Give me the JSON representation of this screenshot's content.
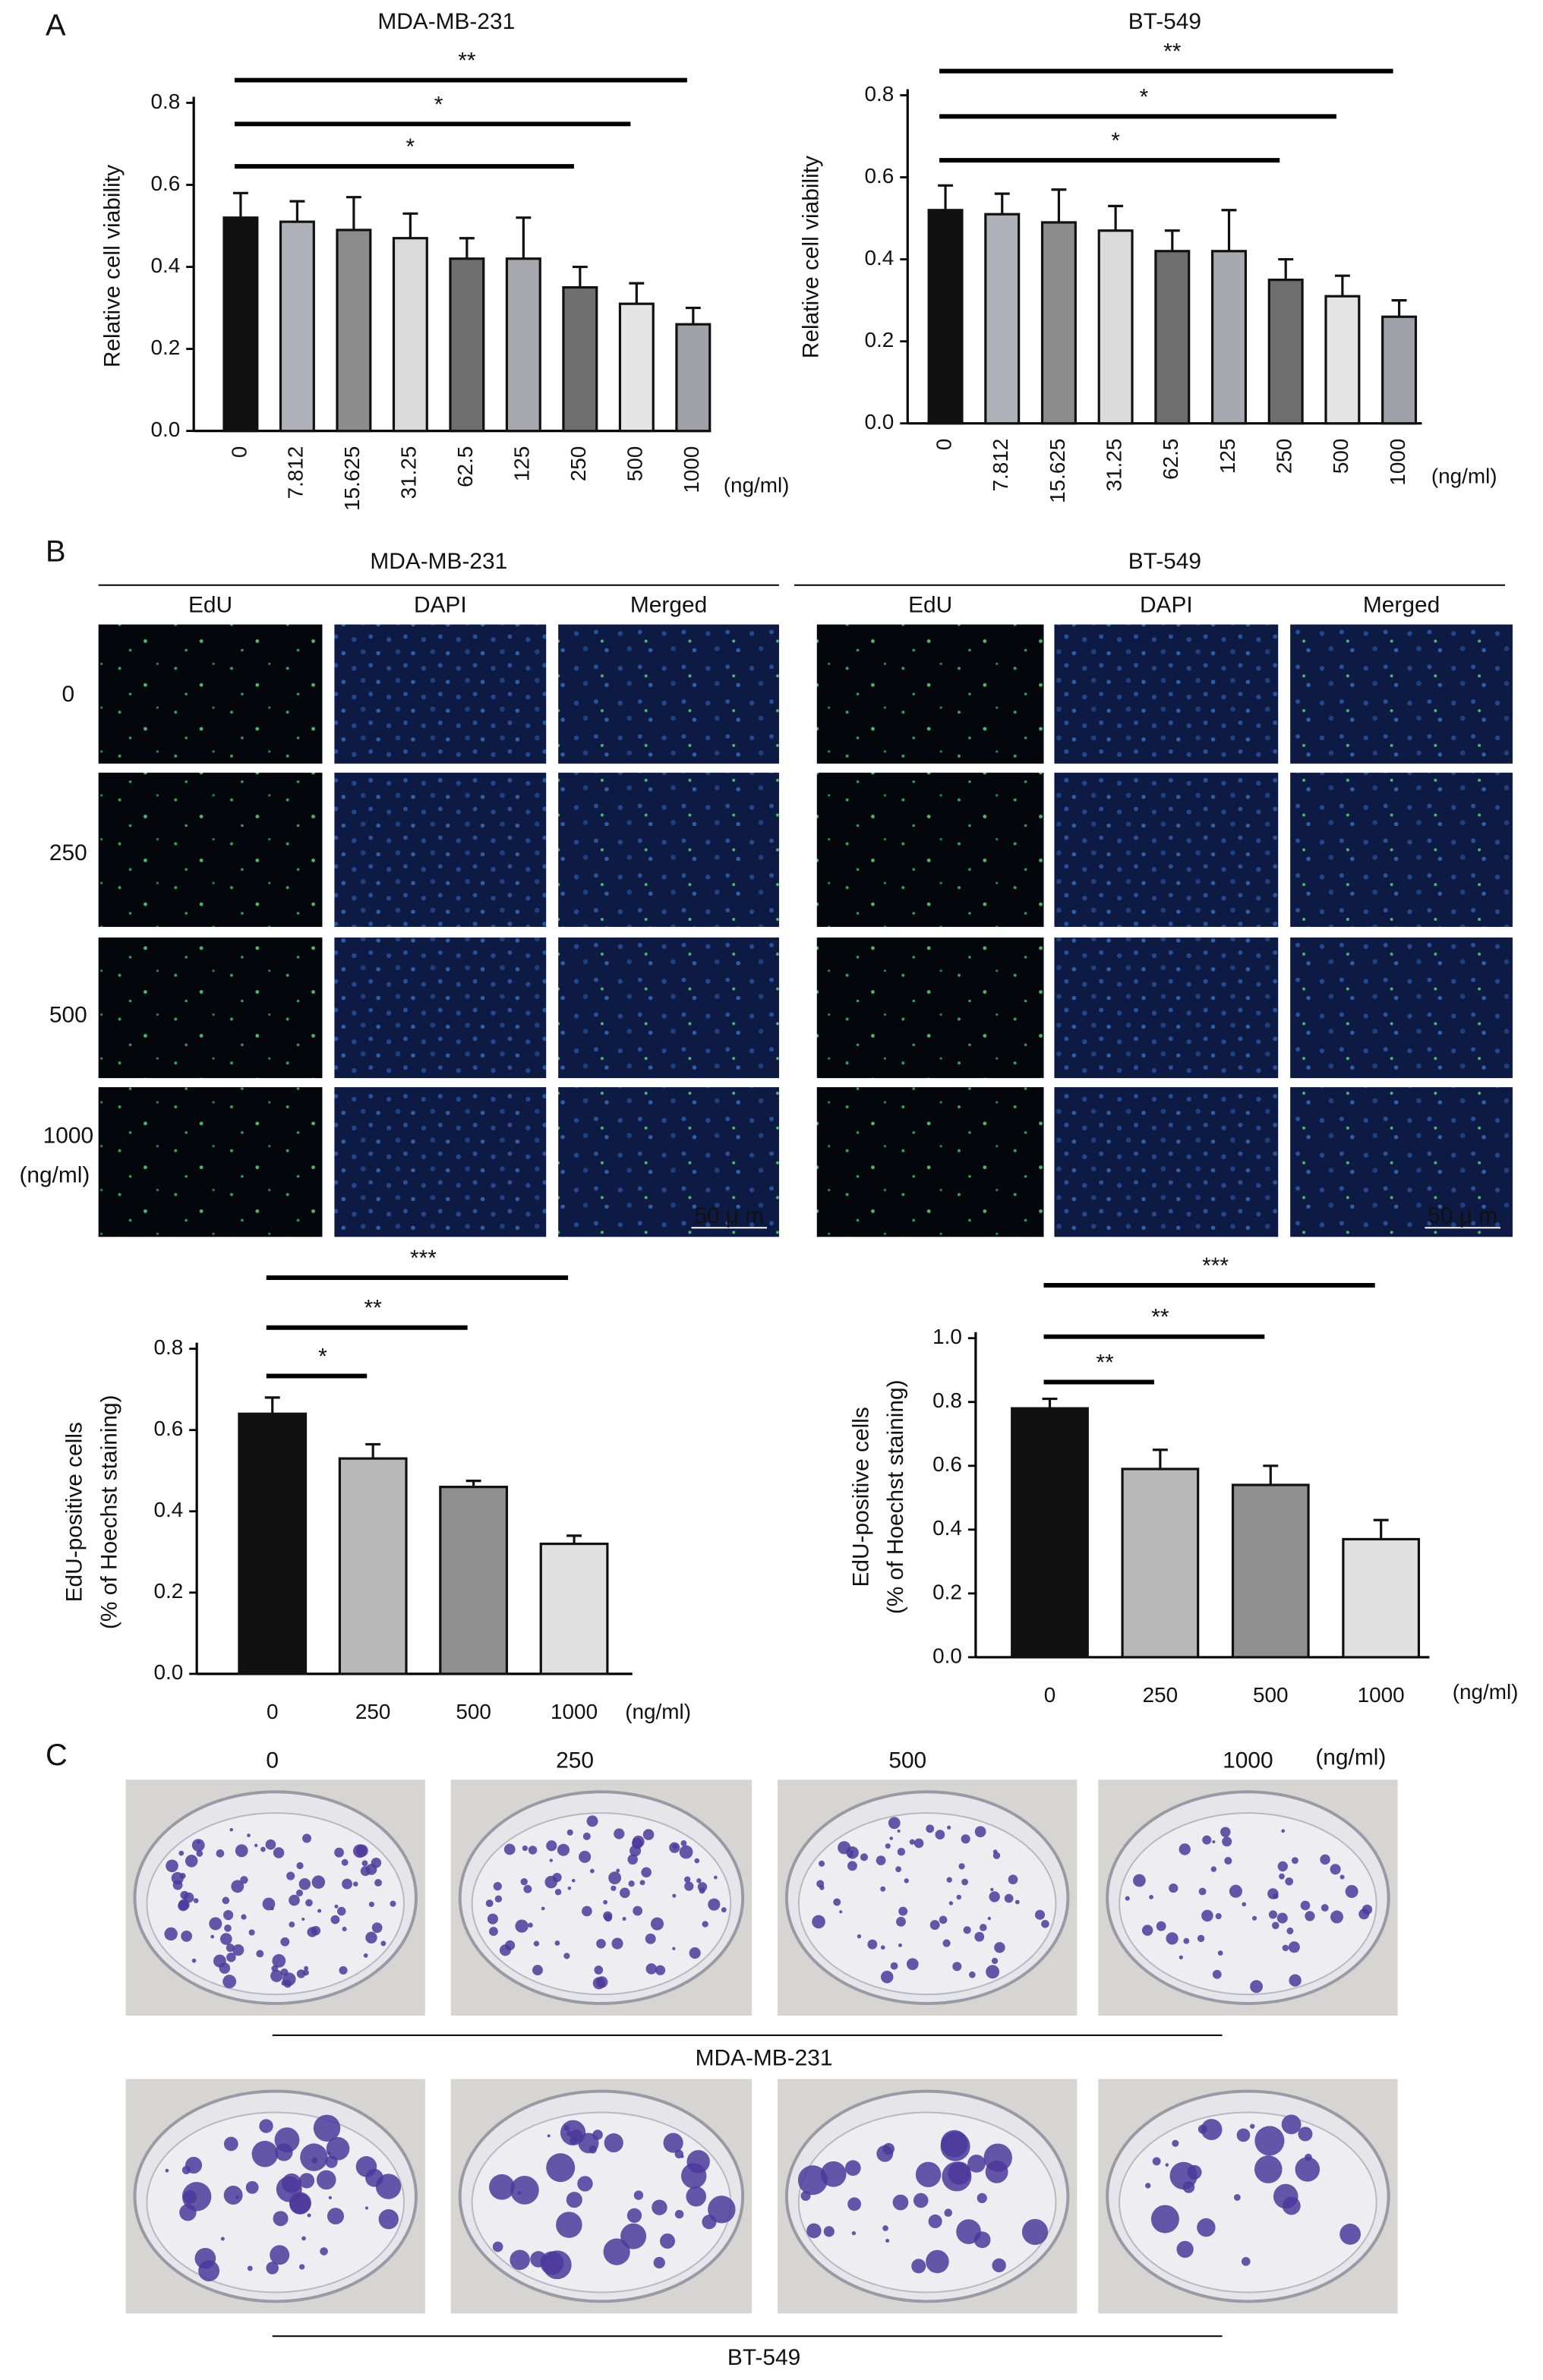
{
  "chart_data": [
    {
      "type": "bar",
      "title": "MDA-MB-231",
      "y_label": [
        "Relative cell viability"
      ],
      "x_unit": "(ng/ml)",
      "categories": [
        "0",
        "7.812",
        "15.625",
        "31.25",
        "62.5",
        "125",
        "250",
        "500",
        "1000"
      ],
      "values": [
        0.52,
        0.51,
        0.49,
        0.47,
        0.42,
        0.42,
        0.35,
        0.31,
        0.26
      ],
      "errors": [
        0.06,
        0.05,
        0.08,
        0.06,
        0.05,
        0.1,
        0.05,
        0.05,
        0.04
      ],
      "colors": [
        "#111111",
        "#b0b0b8",
        "#8c8c8c",
        "#dadada",
        "#6e6e6e",
        "#a8a8b0",
        "#6e6e6e",
        "#e4e4e4",
        "#a0a0a8"
      ],
      "ylim": [
        0,
        0.8
      ],
      "yticks": [
        {
          "value": 0,
          "label": "0.0"
        },
        0.2,
        0.4,
        0.6,
        0.8
      ],
      "significance": [
        {
          "label": "**",
          "from": "0",
          "to": "1000"
        },
        {
          "label": "*",
          "from": "0",
          "to": "500"
        },
        {
          "label": "*",
          "from": "0",
          "to": "250"
        }
      ]
    },
    {
      "type": "bar",
      "title": "BT-549",
      "y_label": [
        "Relative cell viability"
      ],
      "x_unit": "(ng/ml)",
      "categories": [
        "0",
        "7.812",
        "15.625",
        "31.25",
        "62.5",
        "125",
        "250",
        "500",
        "1000"
      ],
      "values": [
        0.52,
        0.51,
        0.49,
        0.47,
        0.42,
        0.42,
        0.35,
        0.31,
        0.26
      ],
      "errors": [
        0.06,
        0.05,
        0.08,
        0.06,
        0.05,
        0.1,
        0.05,
        0.05,
        0.04
      ],
      "colors": [
        "#111111",
        "#b0b0b8",
        "#8c8c8c",
        "#dadada",
        "#6e6e6e",
        "#a8a8b0",
        "#6e6e6e",
        "#e4e4e4",
        "#a0a0a8"
      ],
      "ylim": [
        0,
        0.8
      ],
      "yticks": [
        {
          "value": 0,
          "label": "0.0"
        },
        0.2,
        0.4,
        0.6,
        0.8
      ],
      "significance": [
        {
          "label": "**",
          "from": "0",
          "to": "1000"
        },
        {
          "label": "*",
          "from": "0",
          "to": "500"
        },
        {
          "label": "*",
          "from": "0",
          "to": "250"
        }
      ]
    },
    {
      "type": "bar",
      "y_label": [
        "EdU-positive cells",
        "(% of Hoechst staining)"
      ],
      "x_unit": "(ng/ml)",
      "categories": [
        "0",
        "250",
        "500",
        "1000"
      ],
      "values": [
        0.64,
        0.53,
        0.46,
        0.32
      ],
      "errors": [
        0.04,
        0.035,
        0.015,
        0.02
      ],
      "colors": [
        "#111111",
        "#b8b8b8",
        "#909090",
        "#e0e0e0"
      ],
      "ylim": [
        0,
        0.8
      ],
      "yticks": [
        {
          "value": 0,
          "label": "0.0"
        },
        0.2,
        0.4,
        0.6,
        0.8
      ],
      "significance": [
        {
          "label": "***",
          "from": "0",
          "to": "1000"
        },
        {
          "label": "**",
          "from": "0",
          "to": "500"
        },
        {
          "label": "*",
          "from": "0",
          "to": "250"
        }
      ]
    },
    {
      "type": "bar",
      "y_label": [
        "EdU-positive cells",
        "(% of Hoechst staining)"
      ],
      "x_unit": "(ng/ml)",
      "categories": [
        "0",
        "250",
        "500",
        "1000"
      ],
      "values": [
        0.78,
        0.59,
        0.54,
        0.37
      ],
      "errors": [
        0.03,
        0.06,
        0.06,
        0.06
      ],
      "colors": [
        "#111111",
        "#b8b8b8",
        "#909090",
        "#e0e0e0"
      ],
      "ylim": [
        0,
        1
      ],
      "yticks": [
        {
          "value": 0,
          "label": "0.0"
        },
        0.2,
        0.4,
        0.6,
        0.8,
        {
          "value": 1,
          "label": "1.0"
        }
      ],
      "significance": [
        {
          "label": "***",
          "from": "0",
          "to": "1000"
        },
        {
          "label": "**",
          "from": "0",
          "to": "500"
        },
        {
          "label": "**",
          "from": "0",
          "to": "250"
        }
      ]
    }
  ],
  "figure": {
    "panel_labels": [
      "A",
      "B",
      "C"
    ],
    "edu": {
      "groups": [
        "MDA-MB-231",
        "BT-549"
      ],
      "columns": [
        "EdU",
        "DAPI",
        "Merged"
      ],
      "rows": [
        "0",
        "250",
        "500",
        "1000"
      ],
      "row_unit": "(ng/ml)",
      "scale_bar": "50 μ m"
    },
    "colony": {
      "doses": [
        "0",
        "250",
        "500",
        "1000"
      ],
      "unit": "(ng/ml)",
      "rows": [
        "MDA-MB-231",
        "BT-549"
      ]
    }
  }
}
